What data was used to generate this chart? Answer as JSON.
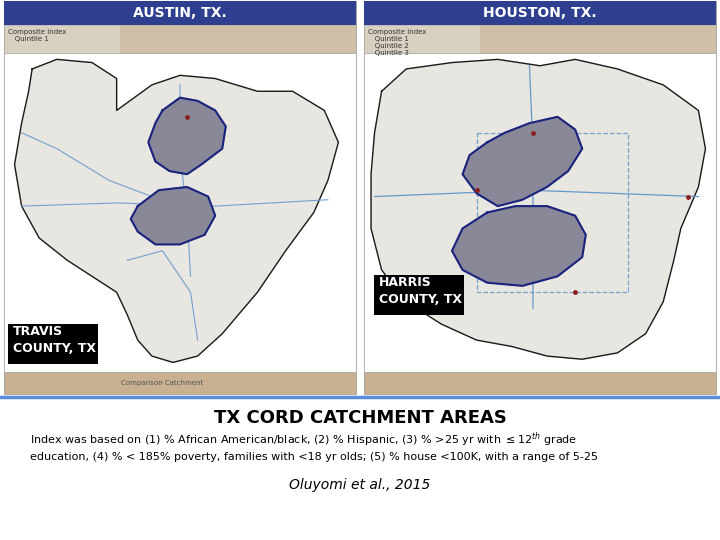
{
  "title": "TX CORD CATCHMENT AREAS",
  "citation": "Oluyomi et al., 2015",
  "austin_label": "AUSTIN, TX.",
  "houston_label": "HOUSTON, TX.",
  "travis_label": "TRAVIS\nCOUNTY, TX",
  "harris_label": "HARRIS\nCOUNTY, TX",
  "header_bg_color": "#2E3F8F",
  "header_text_color": "#FFFFFF",
  "county_label_bg": "#000000",
  "county_label_text": "#FFFFFF",
  "divider_color": "#5B8DD9",
  "bg_color": "#FFFFFF",
  "map_bg": "#F0EFEC",
  "county_fill": "#E8E6E0",
  "zone_fill": "#888899",
  "zone_border": "#1A237E",
  "road_color": "#6699CC",
  "legend_bg": "#D8D0C0",
  "bottom_strip_bg": "#C8B090",
  "panel_border": "#AAAAAA",
  "title_fontsize": 13,
  "subtitle_fontsize": 8,
  "citation_fontsize": 10,
  "header_fontsize": 10,
  "county_label_fontsize": 8
}
